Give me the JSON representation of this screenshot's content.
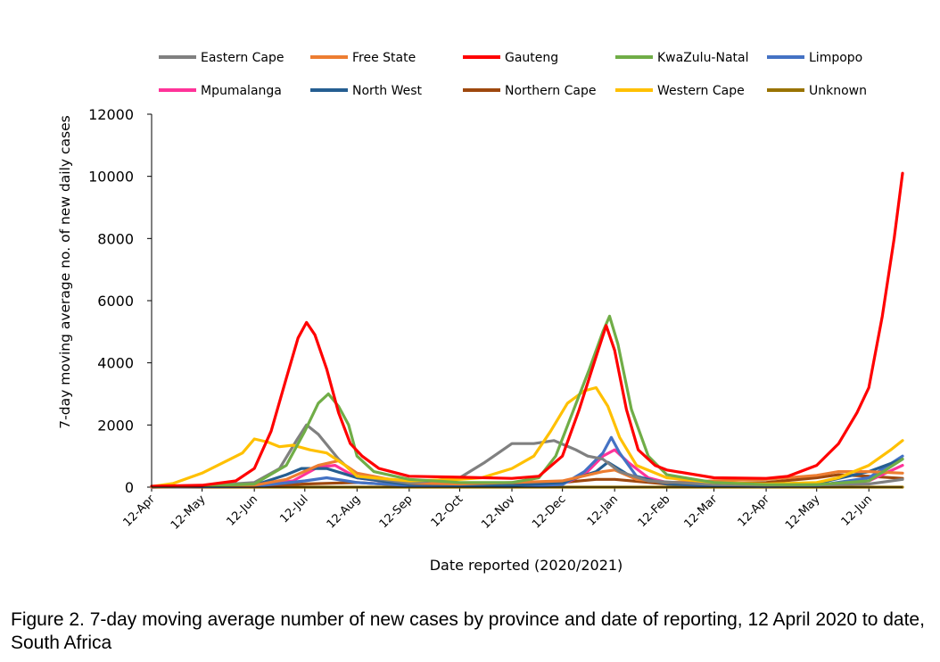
{
  "caption": "Figure 2. 7-day moving average number of new cases by province and date of reporting, 12 April 2020 to date, South Africa",
  "chart_data": {
    "type": "line",
    "xlabel": "Date reported (2020/2021)",
    "ylabel": "7-day moving average no. of new daily cases",
    "ylim": [
      0,
      12000
    ],
    "yticks": [
      0,
      2000,
      4000,
      6000,
      8000,
      10000,
      12000
    ],
    "xlim": [
      "2020-04-12",
      "2021-07-02"
    ],
    "xticks": [
      {
        "date": "2020-04-12",
        "label": "12-Apr"
      },
      {
        "date": "2020-05-12",
        "label": "12-May"
      },
      {
        "date": "2020-06-12",
        "label": "12-Jun"
      },
      {
        "date": "2020-07-12",
        "label": "12-Jul"
      },
      {
        "date": "2020-08-12",
        "label": "12-Aug"
      },
      {
        "date": "2020-09-12",
        "label": "12-Sep"
      },
      {
        "date": "2020-10-12",
        "label": "12-Oct"
      },
      {
        "date": "2020-11-12",
        "label": "12-Nov"
      },
      {
        "date": "2020-12-12",
        "label": "12-Dec"
      },
      {
        "date": "2021-01-12",
        "label": "12-Jan"
      },
      {
        "date": "2021-02-12",
        "label": "12-Feb"
      },
      {
        "date": "2021-03-12",
        "label": "12-Mar"
      },
      {
        "date": "2021-04-12",
        "label": "12-Apr"
      },
      {
        "date": "2021-05-12",
        "label": "12-May"
      },
      {
        "date": "2021-06-12",
        "label": "12-Jun"
      }
    ],
    "legend_position": "top",
    "series": [
      {
        "name": "Eastern Cape",
        "color": "#808080",
        "points": [
          [
            "2020-04-12",
            10
          ],
          [
            "2020-05-12",
            40
          ],
          [
            "2020-06-12",
            150
          ],
          [
            "2020-06-27",
            600
          ],
          [
            "2020-07-07",
            1500
          ],
          [
            "2020-07-13",
            2000
          ],
          [
            "2020-07-20",
            1700
          ],
          [
            "2020-08-01",
            900
          ],
          [
            "2020-08-12",
            350
          ],
          [
            "2020-09-12",
            130
          ],
          [
            "2020-10-12",
            300
          ],
          [
            "2020-10-27",
            800
          ],
          [
            "2020-11-12",
            1400
          ],
          [
            "2020-11-25",
            1400
          ],
          [
            "2020-12-07",
            1500
          ],
          [
            "2020-12-20",
            1200
          ],
          [
            "2020-12-27",
            1000
          ],
          [
            "2021-01-05",
            900
          ],
          [
            "2021-01-15",
            500
          ],
          [
            "2021-02-01",
            200
          ],
          [
            "2021-03-12",
            80
          ],
          [
            "2021-04-12",
            60
          ],
          [
            "2021-05-12",
            70
          ],
          [
            "2021-06-12",
            100
          ],
          [
            "2021-07-02",
            250
          ]
        ]
      },
      {
        "name": "Free State",
        "color": "#ED7D31",
        "points": [
          [
            "2020-04-12",
            0
          ],
          [
            "2020-06-12",
            60
          ],
          [
            "2020-07-01",
            250
          ],
          [
            "2020-07-20",
            700
          ],
          [
            "2020-08-01",
            850
          ],
          [
            "2020-08-12",
            450
          ],
          [
            "2020-09-12",
            130
          ],
          [
            "2020-10-12",
            100
          ],
          [
            "2020-11-12",
            150
          ],
          [
            "2020-12-12",
            200
          ],
          [
            "2021-01-05",
            500
          ],
          [
            "2021-01-12",
            550
          ],
          [
            "2021-01-25",
            250
          ],
          [
            "2021-02-12",
            150
          ],
          [
            "2021-03-12",
            200
          ],
          [
            "2021-04-12",
            250
          ],
          [
            "2021-05-12",
            380
          ],
          [
            "2021-05-25",
            500
          ],
          [
            "2021-06-12",
            500
          ],
          [
            "2021-07-02",
            450
          ]
        ]
      },
      {
        "name": "Gauteng",
        "color": "#FF0000",
        "points": [
          [
            "2020-04-12",
            30
          ],
          [
            "2020-05-12",
            60
          ],
          [
            "2020-06-01",
            200
          ],
          [
            "2020-06-12",
            600
          ],
          [
            "2020-06-22",
            1800
          ],
          [
            "2020-07-01",
            3500
          ],
          [
            "2020-07-08",
            4800
          ],
          [
            "2020-07-13",
            5300
          ],
          [
            "2020-07-18",
            4900
          ],
          [
            "2020-07-25",
            3800
          ],
          [
            "2020-08-01",
            2400
          ],
          [
            "2020-08-08",
            1400
          ],
          [
            "2020-08-15",
            1000
          ],
          [
            "2020-08-25",
            600
          ],
          [
            "2020-09-12",
            350
          ],
          [
            "2020-10-12",
            320
          ],
          [
            "2020-11-12",
            280
          ],
          [
            "2020-11-28",
            350
          ],
          [
            "2020-12-12",
            1000
          ],
          [
            "2020-12-22",
            2500
          ],
          [
            "2021-01-01",
            4200
          ],
          [
            "2021-01-07",
            5200
          ],
          [
            "2021-01-12",
            4400
          ],
          [
            "2021-01-19",
            2500
          ],
          [
            "2021-01-26",
            1200
          ],
          [
            "2021-02-05",
            700
          ],
          [
            "2021-02-12",
            550
          ],
          [
            "2021-03-12",
            300
          ],
          [
            "2021-04-12",
            280
          ],
          [
            "2021-04-25",
            350
          ],
          [
            "2021-05-12",
            700
          ],
          [
            "2021-05-25",
            1400
          ],
          [
            "2021-06-05",
            2400
          ],
          [
            "2021-06-12",
            3200
          ],
          [
            "2021-06-20",
            5500
          ],
          [
            "2021-06-27",
            8000
          ],
          [
            "2021-07-02",
            10100
          ]
        ]
      },
      {
        "name": "KwaZulu-Natal",
        "color": "#70AD47",
        "points": [
          [
            "2020-04-12",
            20
          ],
          [
            "2020-05-12",
            40
          ],
          [
            "2020-06-12",
            100
          ],
          [
            "2020-07-01",
            700
          ],
          [
            "2020-07-12",
            1800
          ],
          [
            "2020-07-20",
            2700
          ],
          [
            "2020-07-26",
            3000
          ],
          [
            "2020-08-01",
            2600
          ],
          [
            "2020-08-07",
            2000
          ],
          [
            "2020-08-12",
            1000
          ],
          [
            "2020-08-22",
            500
          ],
          [
            "2020-09-12",
            250
          ],
          [
            "2020-10-12",
            150
          ],
          [
            "2020-11-12",
            150
          ],
          [
            "2020-11-28",
            300
          ],
          [
            "2020-12-08",
            1000
          ],
          [
            "2020-12-18",
            2400
          ],
          [
            "2020-12-28",
            3800
          ],
          [
            "2021-01-05",
            5000
          ],
          [
            "2021-01-09",
            5500
          ],
          [
            "2021-01-14",
            4600
          ],
          [
            "2021-01-22",
            2500
          ],
          [
            "2021-02-01",
            1000
          ],
          [
            "2021-02-12",
            400
          ],
          [
            "2021-03-12",
            150
          ],
          [
            "2021-04-12",
            80
          ],
          [
            "2021-05-12",
            80
          ],
          [
            "2021-06-12",
            200
          ],
          [
            "2021-07-02",
            900
          ]
        ]
      },
      {
        "name": "Limpopo",
        "color": "#4472C4",
        "points": [
          [
            "2020-04-12",
            0
          ],
          [
            "2020-06-12",
            30
          ],
          [
            "2020-07-12",
            200
          ],
          [
            "2020-07-25",
            300
          ],
          [
            "2020-08-12",
            150
          ],
          [
            "2020-09-12",
            50
          ],
          [
            "2020-11-12",
            30
          ],
          [
            "2020-12-12",
            80
          ],
          [
            "2020-12-25",
            500
          ],
          [
            "2021-01-05",
            1100
          ],
          [
            "2021-01-10",
            1600
          ],
          [
            "2021-01-15",
            1100
          ],
          [
            "2021-01-25",
            350
          ],
          [
            "2021-02-12",
            100
          ],
          [
            "2021-03-12",
            40
          ],
          [
            "2021-04-12",
            20
          ],
          [
            "2021-05-12",
            50
          ],
          [
            "2021-06-12",
            300
          ],
          [
            "2021-07-02",
            1000
          ]
        ]
      },
      {
        "name": "Mpumalanga",
        "color": "#FF3399",
        "points": [
          [
            "2020-04-12",
            0
          ],
          [
            "2020-06-12",
            40
          ],
          [
            "2020-07-05",
            200
          ],
          [
            "2020-07-20",
            650
          ],
          [
            "2020-07-30",
            700
          ],
          [
            "2020-08-12",
            300
          ],
          [
            "2020-09-12",
            80
          ],
          [
            "2020-11-12",
            50
          ],
          [
            "2020-12-12",
            100
          ],
          [
            "2020-12-25",
            400
          ],
          [
            "2021-01-05",
            1000
          ],
          [
            "2021-01-12",
            1200
          ],
          [
            "2021-01-20",
            800
          ],
          [
            "2021-02-01",
            300
          ],
          [
            "2021-02-12",
            150
          ],
          [
            "2021-03-12",
            60
          ],
          [
            "2021-04-12",
            30
          ],
          [
            "2021-05-12",
            60
          ],
          [
            "2021-06-12",
            200
          ],
          [
            "2021-07-02",
            700
          ]
        ]
      },
      {
        "name": "North West",
        "color": "#255E91",
        "points": [
          [
            "2020-04-12",
            0
          ],
          [
            "2020-06-12",
            60
          ],
          [
            "2020-07-01",
            400
          ],
          [
            "2020-07-10",
            600
          ],
          [
            "2020-07-25",
            600
          ],
          [
            "2020-08-12",
            300
          ],
          [
            "2020-09-12",
            80
          ],
          [
            "2020-11-12",
            50
          ],
          [
            "2020-12-12",
            150
          ],
          [
            "2021-01-01",
            500
          ],
          [
            "2021-01-08",
            800
          ],
          [
            "2021-01-20",
            400
          ],
          [
            "2021-02-12",
            100
          ],
          [
            "2021-03-12",
            60
          ],
          [
            "2021-04-12",
            50
          ],
          [
            "2021-05-12",
            120
          ],
          [
            "2021-06-12",
            500
          ],
          [
            "2021-07-02",
            900
          ]
        ]
      },
      {
        "name": "Northern Cape",
        "color": "#9E480E",
        "points": [
          [
            "2020-04-12",
            0
          ],
          [
            "2020-06-12",
            20
          ],
          [
            "2020-07-12",
            100
          ],
          [
            "2020-08-12",
            150
          ],
          [
            "2020-09-12",
            50
          ],
          [
            "2020-10-12",
            60
          ],
          [
            "2020-11-12",
            100
          ],
          [
            "2020-12-12",
            150
          ],
          [
            "2021-01-01",
            250
          ],
          [
            "2021-01-12",
            250
          ],
          [
            "2021-02-12",
            100
          ],
          [
            "2021-03-12",
            100
          ],
          [
            "2021-04-12",
            150
          ],
          [
            "2021-05-12",
            300
          ],
          [
            "2021-05-25",
            400
          ],
          [
            "2021-06-12",
            350
          ],
          [
            "2021-07-02",
            280
          ]
        ]
      },
      {
        "name": "Western Cape",
        "color": "#FFC000",
        "points": [
          [
            "2020-04-12",
            20
          ],
          [
            "2020-04-25",
            120
          ],
          [
            "2020-05-12",
            450
          ],
          [
            "2020-05-25",
            800
          ],
          [
            "2020-06-05",
            1100
          ],
          [
            "2020-06-12",
            1550
          ],
          [
            "2020-06-20",
            1450
          ],
          [
            "2020-06-27",
            1300
          ],
          [
            "2020-07-05",
            1350
          ],
          [
            "2020-07-15",
            1200
          ],
          [
            "2020-07-25",
            1100
          ],
          [
            "2020-08-05",
            700
          ],
          [
            "2020-08-12",
            350
          ],
          [
            "2020-09-12",
            200
          ],
          [
            "2020-10-12",
            250
          ],
          [
            "2020-10-25",
            300
          ],
          [
            "2020-11-12",
            600
          ],
          [
            "2020-11-25",
            1000
          ],
          [
            "2020-12-05",
            1800
          ],
          [
            "2020-12-15",
            2700
          ],
          [
            "2020-12-25",
            3100
          ],
          [
            "2021-01-01",
            3200
          ],
          [
            "2021-01-08",
            2600
          ],
          [
            "2021-01-15",
            1600
          ],
          [
            "2021-01-25",
            700
          ],
          [
            "2021-02-12",
            300
          ],
          [
            "2021-03-12",
            150
          ],
          [
            "2021-04-12",
            100
          ],
          [
            "2021-05-12",
            150
          ],
          [
            "2021-05-25",
            300
          ],
          [
            "2021-06-12",
            700
          ],
          [
            "2021-06-25",
            1200
          ],
          [
            "2021-07-02",
            1500
          ]
        ]
      },
      {
        "name": "Unknown",
        "color": "#997300",
        "points": [
          [
            "2020-04-12",
            0
          ],
          [
            "2021-07-02",
            0
          ]
        ]
      }
    ]
  }
}
